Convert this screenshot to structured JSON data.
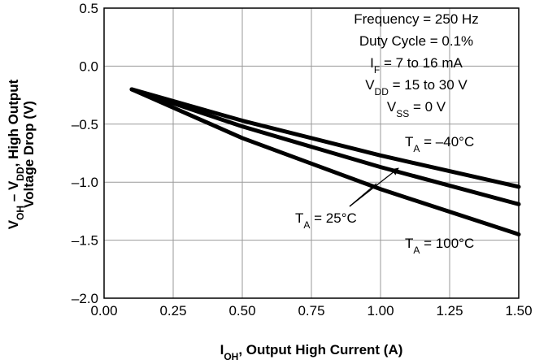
{
  "chart_data": {
    "type": "line",
    "xlabel": {
      "main": "I",
      "sub": "OH",
      "rest": ", Output High Current (A)"
    },
    "ylabel": {
      "line1": [
        {
          "t": "V",
          "sub": false
        },
        {
          "t": "OH",
          "sub": true
        },
        {
          "t": " – V",
          "sub": false
        },
        {
          "t": "DD",
          "sub": true
        },
        {
          "t": ", High Output",
          "sub": false
        }
      ],
      "line2": "Voltage Drop (V)"
    },
    "xlim": [
      0.0,
      1.5
    ],
    "ylim": [
      -2.0,
      0.5
    ],
    "x_ticks": [
      "0.00",
      "0.25",
      "0.50",
      "0.75",
      "1.00",
      "1.25",
      "1.50"
    ],
    "y_ticks": [
      "0.5",
      "0.0",
      "–0.5",
      "–1.0",
      "–1.5",
      "–2.0"
    ],
    "grid": true,
    "series": [
      {
        "name": "T_A = –40°C",
        "x": [
          0.1,
          0.5,
          1.0,
          1.5
        ],
        "y": [
          -0.2,
          -0.47,
          -0.77,
          -1.04
        ]
      },
      {
        "name": "T_A = 25°C",
        "x": [
          0.1,
          0.5,
          1.0,
          1.5
        ],
        "y": [
          -0.2,
          -0.52,
          -0.87,
          -1.19
        ]
      },
      {
        "name": "T_A = 100°C",
        "x": [
          0.1,
          0.5,
          1.0,
          1.5
        ],
        "y": [
          -0.2,
          -0.62,
          -1.06,
          -1.45
        ]
      }
    ],
    "annotations": {
      "conditions": [
        [
          {
            "t": "Frequency = 250 Hz",
            "sub": false
          }
        ],
        [
          {
            "t": "Duty Cycle = 0.1%",
            "sub": false
          }
        ],
        [
          {
            "t": "I",
            "sub": false
          },
          {
            "t": "F",
            "sub": true
          },
          {
            "t": " = 7 to 16 mA",
            "sub": false
          }
        ],
        [
          {
            "t": "V",
            "sub": false
          },
          {
            "t": "DD",
            "sub": true
          },
          {
            "t": " = 15 to 30 V",
            "sub": false
          }
        ],
        [
          {
            "t": "V",
            "sub": false
          },
          {
            "t": "SS",
            "sub": true
          },
          {
            "t": " = 0 V",
            "sub": false
          }
        ]
      ],
      "series_labels": [
        [
          {
            "t": "T",
            "sub": false
          },
          {
            "t": "A",
            "sub": true
          },
          {
            "t": " = –40°C",
            "sub": false
          }
        ],
        [
          {
            "t": "T",
            "sub": false
          },
          {
            "t": "A",
            "sub": true
          },
          {
            "t": " = 25°C",
            "sub": false
          }
        ],
        [
          {
            "t": "T",
            "sub": false
          },
          {
            "t": "A",
            "sub": true
          },
          {
            "t": " = 100°C",
            "sub": false
          }
        ]
      ]
    }
  }
}
